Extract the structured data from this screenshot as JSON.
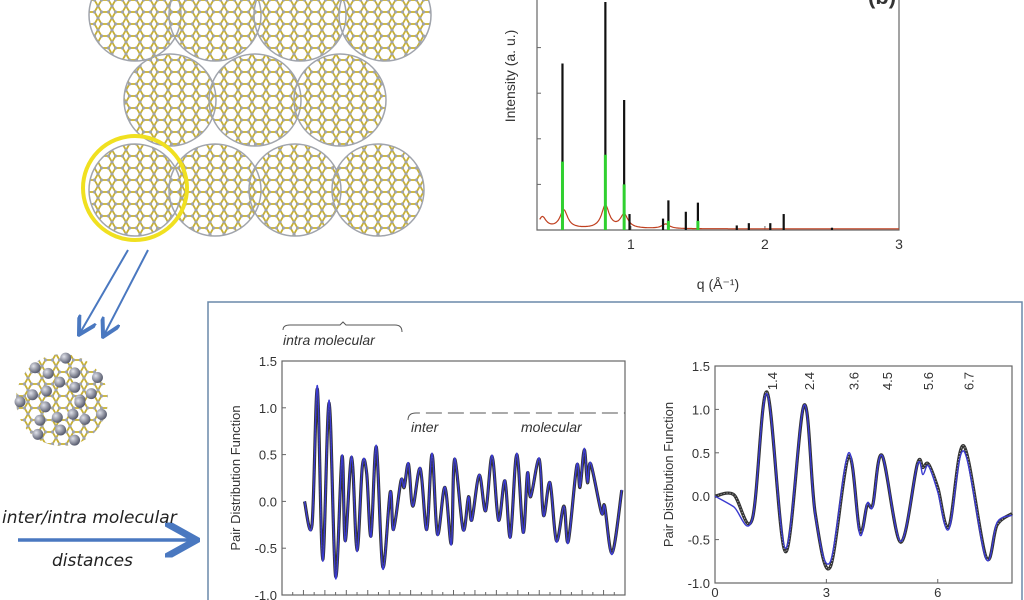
{
  "figure": {
    "panel_label_b": "(b)",
    "caption_line1": "inter/intra molecular",
    "caption_line2": "distances",
    "colors": {
      "accent_arrow": "#4a78c0",
      "highlight_ring": "#f0e020",
      "frame": "#6a88aa",
      "bond": "#c8b030",
      "atom": "#a0a4ac"
    }
  },
  "chart_data": [
    {
      "id": "diffraction",
      "type": "line",
      "title": "",
      "xlabel": "q (Å⁻¹)",
      "ylabel": "Intensity (a. u.)",
      "xlim": [
        0.3,
        3
      ],
      "ylim": [
        0,
        1
      ],
      "xticks": [
        "1",
        "2",
        "3"
      ],
      "xtick_values": [
        1,
        2,
        3
      ],
      "series": [
        {
          "name": "black",
          "color": "#111111",
          "peaks": [
            [
              0.49,
              0.73
            ],
            [
              0.81,
              1.0
            ],
            [
              0.95,
              0.57
            ],
            [
              0.99,
              0.07
            ],
            [
              1.24,
              0.05
            ],
            [
              1.28,
              0.13
            ],
            [
              1.41,
              0.08
            ],
            [
              1.5,
              0.12
            ],
            [
              1.79,
              0.02
            ],
            [
              1.88,
              0.03
            ],
            [
              2.04,
              0.03
            ],
            [
              2.14,
              0.07
            ],
            [
              2.5,
              0.01
            ]
          ]
        },
        {
          "name": "green",
          "color": "#30d030",
          "peaks": [
            [
              0.49,
              0.3
            ],
            [
              0.81,
              0.33
            ],
            [
              0.95,
              0.2
            ],
            [
              1.28,
              0.04
            ],
            [
              1.5,
              0.04
            ]
          ]
        },
        {
          "name": "red",
          "color": "#c04020",
          "broad": [
            [
              0.34,
              0.05
            ],
            [
              0.5,
              0.08
            ],
            [
              0.81,
              0.1
            ],
            [
              0.95,
              0.06
            ],
            [
              1.26,
              0.02
            ]
          ]
        }
      ]
    },
    {
      "id": "pdf-wide",
      "type": "line",
      "xlabel": "",
      "ylabel": "Pair Distribution Function",
      "xlim": [
        0,
        32
      ],
      "ylim": [
        -1.0,
        1.5
      ],
      "yticks": [
        "1.5",
        "1.0",
        "0.5",
        "0.0",
        "-0.5",
        "-1.0"
      ],
      "ytick_values": [
        1.5,
        1.0,
        0.5,
        0.0,
        -0.5,
        -1.0
      ],
      "annotations": {
        "intra": "intra  molecular",
        "inter": "inter",
        "molecular": "molecular"
      },
      "x": [
        2.1,
        2.8,
        3.3,
        3.8,
        4.4,
        5.0,
        5.6,
        5.9,
        6.5,
        7.0,
        7.5,
        7.9,
        8.3,
        8.8,
        9.4,
        10.1,
        10.4,
        11.1,
        11.4,
        11.8,
        12.2,
        12.9,
        13.5,
        14.0,
        14.5,
        15.2,
        15.8,
        16.1,
        16.9,
        17.4,
        17.7,
        18.4,
        19.0,
        19.6,
        20.2,
        20.8,
        21.3,
        21.9,
        22.5,
        22.9,
        23.2,
        24.0,
        24.4,
        25.0,
        25.6,
        26.3,
        26.7,
        27.5,
        27.8,
        28.2,
        28.5,
        28.8,
        29.8,
        30.1,
        30.8,
        31.7
      ],
      "series": [
        {
          "name": "data",
          "color": "#333333",
          "y": [
            0.0,
            -0.25,
            1.2,
            -0.62,
            1.05,
            -0.8,
            0.48,
            -0.42,
            0.47,
            -0.52,
            0.38,
            0.3,
            -0.37,
            0.58,
            -0.7,
            0.1,
            -0.3,
            0.22,
            0.15,
            0.4,
            -0.05,
            0.35,
            -0.3,
            0.5,
            -0.35,
            0.15,
            -0.45,
            0.45,
            -0.3,
            0.05,
            -0.2,
            0.28,
            -0.1,
            0.48,
            -0.2,
            0.22,
            -0.38,
            0.5,
            -0.33,
            0.3,
            0.05,
            0.45,
            -0.15,
            0.2,
            -0.42,
            -0.05,
            -0.43,
            0.38,
            0.15,
            0.55,
            0.2,
            0.4,
            -0.12,
            -0.05,
            -0.55,
            0.12
          ]
        },
        {
          "name": "fit",
          "color": "#3a3ad0"
        }
      ]
    },
    {
      "id": "pdf-short",
      "type": "line",
      "xlabel": "",
      "ylabel": "Pair Distribution Function",
      "xlim": [
        0,
        8
      ],
      "ylim": [
        -1.0,
        1.5
      ],
      "yticks": [
        "1.5",
        "1.0",
        "0.5",
        "0.0",
        "-0.5",
        "-1.0"
      ],
      "ytick_values": [
        1.5,
        1.0,
        0.5,
        0.0,
        -0.5,
        -1.0
      ],
      "xticks": [
        "0",
        "3",
        "6"
      ],
      "xtick_values": [
        0,
        3,
        6
      ],
      "peak_labels": [
        {
          "x": 1.4,
          "text": "1.4"
        },
        {
          "x": 2.4,
          "text": "2.4"
        },
        {
          "x": 3.6,
          "text": "3.6"
        },
        {
          "x": 4.5,
          "text": "4.5"
        },
        {
          "x": 5.6,
          "text": "5.6"
        },
        {
          "x": 6.7,
          "text": "6.7"
        }
      ],
      "x": [
        0,
        0.5,
        1.0,
        1.4,
        1.9,
        2.4,
        2.7,
        3.1,
        3.6,
        3.9,
        4.1,
        4.25,
        4.5,
        5.0,
        5.45,
        5.6,
        5.75,
        6.0,
        6.3,
        6.7,
        7.3,
        7.6,
        8.0
      ],
      "series": [
        {
          "name": "data",
          "color": "#333333",
          "y": [
            0,
            0.02,
            -0.27,
            1.2,
            -0.64,
            1.05,
            -0.2,
            -0.82,
            0.46,
            -0.4,
            -0.1,
            -0.1,
            0.47,
            -0.53,
            0.37,
            0.33,
            0.37,
            0.1,
            -0.35,
            0.58,
            -0.7,
            -0.33,
            -0.2
          ]
        },
        {
          "name": "fit",
          "color": "#3a3ad0",
          "y": [
            0,
            -0.12,
            -0.27,
            1.18,
            -0.6,
            1.05,
            -0.22,
            -0.76,
            0.5,
            -0.44,
            -0.08,
            -0.12,
            0.47,
            -0.52,
            0.36,
            0.25,
            0.35,
            0.05,
            -0.38,
            0.52,
            -0.72,
            -0.3,
            -0.22
          ]
        }
      ]
    }
  ]
}
